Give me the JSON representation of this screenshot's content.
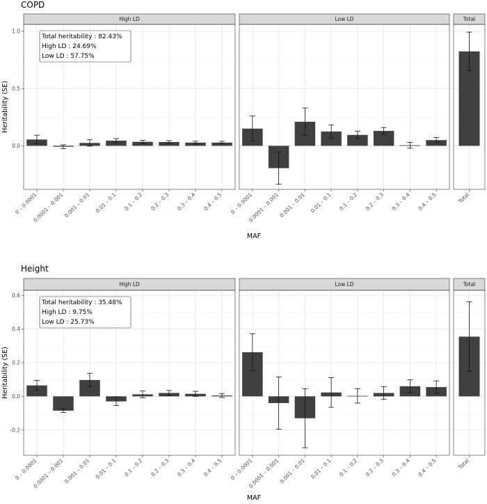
{
  "chart_data": [
    {
      "type": "bar",
      "title": "COPD",
      "xlabel": "MAF",
      "ylabel": "Heritability (SE)",
      "ylim": [
        -0.38,
        1.06
      ],
      "yticks": [
        0.0,
        0.5,
        1.0
      ],
      "ytick_labels": [
        "0.0",
        "0.5",
        "1.0"
      ],
      "facets": [
        "High LD",
        "Low LD",
        "Total"
      ],
      "categories": [
        "0 – 0.0001",
        "0.0001 – 0.001",
        "0.001 – 0.01",
        "0.01 – 0.1",
        "0.1 – 0.2",
        "0.2 – 0.3",
        "0.3 – 0.4",
        "0.4 – 0.5"
      ],
      "series": [
        {
          "name": "High LD",
          "values": [
            0.055,
            -0.008,
            0.025,
            0.045,
            0.035,
            0.033,
            0.028,
            0.028
          ],
          "se": [
            0.038,
            0.017,
            0.028,
            0.018,
            0.013,
            0.012,
            0.012,
            0.011
          ]
        },
        {
          "name": "Low LD",
          "values": [
            0.15,
            -0.195,
            0.21,
            0.125,
            0.095,
            0.13,
            0.005,
            0.05
          ],
          "se": [
            0.11,
            0.14,
            0.12,
            0.058,
            0.032,
            0.03,
            0.026,
            0.022
          ]
        }
      ],
      "total": {
        "category": "Total",
        "value": 0.8243,
        "se": 0.168
      },
      "annotation": [
        "Total heritability : 82.43%",
        "High LD : 24.69%",
        "Low LD : 57.75%"
      ]
    },
    {
      "type": "bar",
      "title": "Height",
      "xlabel": "MAF",
      "ylabel": "Heritability (SE)",
      "ylim": [
        -0.35,
        0.63
      ],
      "yticks": [
        -0.2,
        0.0,
        0.2,
        0.4,
        0.6
      ],
      "ytick_labels": [
        "-0.2",
        "0.0",
        "0.2",
        "0.4",
        "0.6"
      ],
      "facets": [
        "High LD",
        "Low LD",
        "Total"
      ],
      "categories": [
        "0 – 0.0001",
        "0.0001 – 0.001",
        "0.001 – 0.01",
        "0.01 – 0.1",
        "0.1 – 0.2",
        "0.2 – 0.3",
        "0.3 – 0.4",
        "0.4 – 0.5"
      ],
      "series": [
        {
          "name": "High LD",
          "values": [
            0.065,
            -0.085,
            0.097,
            -0.03,
            0.012,
            0.02,
            0.015,
            0.005
          ],
          "se": [
            0.03,
            0.01,
            0.04,
            0.025,
            0.02,
            0.015,
            0.015,
            0.012
          ]
        },
        {
          "name": "Low LD",
          "values": [
            0.262,
            -0.04,
            -0.13,
            0.023,
            0.003,
            0.02,
            0.06,
            0.055
          ],
          "se": [
            0.11,
            0.155,
            0.175,
            0.088,
            0.043,
            0.038,
            0.038,
            0.037
          ]
        }
      ],
      "total": {
        "category": "Total",
        "value": 0.3548,
        "se": 0.207
      },
      "annotation": [
        "Total heritability : 35.48%",
        "High LD : 9.75%",
        "Low LD : 25.73%"
      ]
    }
  ]
}
